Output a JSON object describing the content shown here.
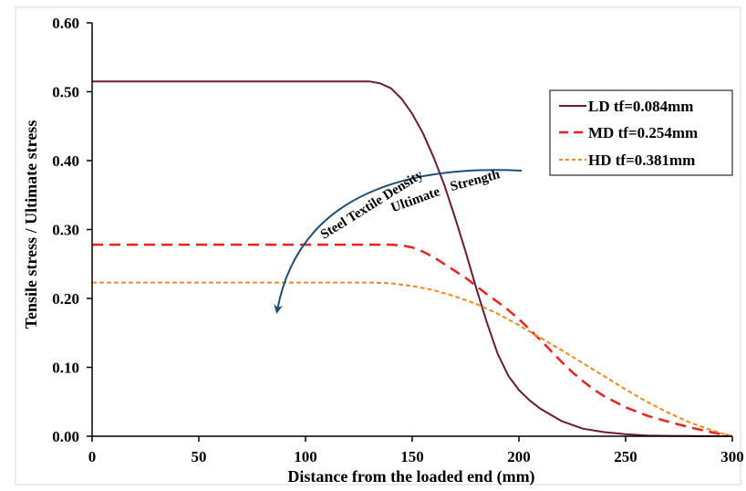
{
  "chart_data": {
    "type": "line",
    "xlabel": "Distance from the loaded end (mm)",
    "ylabel": "Tensile stress / Ultimate stress",
    "xlim": [
      0,
      300
    ],
    "ylim": [
      0,
      0.6
    ],
    "x_ticks": [
      0,
      50,
      100,
      150,
      200,
      250,
      300
    ],
    "y_ticks": [
      0,
      0.1,
      0.2,
      0.3,
      0.4,
      0.5,
      0.6
    ],
    "x_tick_labels": [
      "0",
      "50",
      "100",
      "150",
      "200",
      "250",
      "300"
    ],
    "y_tick_labels": [
      "0.00",
      "0.10",
      "0.20",
      "0.30",
      "0.40",
      "0.50",
      "0.60"
    ],
    "grid": false,
    "legend_position": "top-right",
    "series": [
      {
        "name": "LD tf=0.084mm",
        "color": "#6b1a3a",
        "style": "solid",
        "x": [
          0,
          50,
          100,
          130,
          135,
          140,
          145,
          150,
          155,
          160,
          165,
          170,
          175,
          180,
          185,
          190,
          195,
          200,
          205,
          210,
          220,
          230,
          240,
          250,
          260,
          270,
          280,
          290,
          300
        ],
        "y": [
          0.515,
          0.515,
          0.515,
          0.515,
          0.512,
          0.505,
          0.49,
          0.468,
          0.44,
          0.405,
          0.365,
          0.318,
          0.268,
          0.215,
          0.165,
          0.12,
          0.088,
          0.067,
          0.052,
          0.04,
          0.022,
          0.011,
          0.006,
          0.003,
          0.001,
          0.0005,
          0.0002,
          0.0001,
          0.0
        ]
      },
      {
        "name": "MD tf=0.254mm",
        "color": "#e8231e",
        "style": "dashed",
        "x": [
          0,
          50,
          100,
          140,
          145,
          150,
          155,
          160,
          165,
          170,
          175,
          180,
          185,
          190,
          195,
          200,
          205,
          210,
          215,
          220,
          225,
          230,
          235,
          240,
          250,
          260,
          270,
          280,
          290,
          300
        ],
        "y": [
          0.278,
          0.278,
          0.278,
          0.278,
          0.277,
          0.274,
          0.268,
          0.26,
          0.25,
          0.24,
          0.23,
          0.218,
          0.206,
          0.195,
          0.183,
          0.17,
          0.155,
          0.14,
          0.124,
          0.108,
          0.093,
          0.08,
          0.068,
          0.058,
          0.042,
          0.03,
          0.021,
          0.013,
          0.006,
          0.0
        ]
      },
      {
        "name": "HD tf=0.381mm",
        "color": "#f08a1c",
        "style": "dotted",
        "x": [
          0,
          50,
          100,
          130,
          140,
          150,
          160,
          170,
          180,
          190,
          200,
          210,
          220,
          230,
          240,
          250,
          260,
          270,
          280,
          290,
          300
        ],
        "y": [
          0.223,
          0.223,
          0.223,
          0.223,
          0.222,
          0.218,
          0.212,
          0.203,
          0.192,
          0.178,
          0.161,
          0.143,
          0.125,
          0.106,
          0.087,
          0.068,
          0.05,
          0.034,
          0.02,
          0.009,
          0.0
        ]
      }
    ],
    "annotations": {
      "arrow_text_1": "Steel Textile Density",
      "arrow_text_2": "Ultimate",
      "arrow_text_3": "Strength",
      "arrow_color": "#1f4e79"
    }
  }
}
